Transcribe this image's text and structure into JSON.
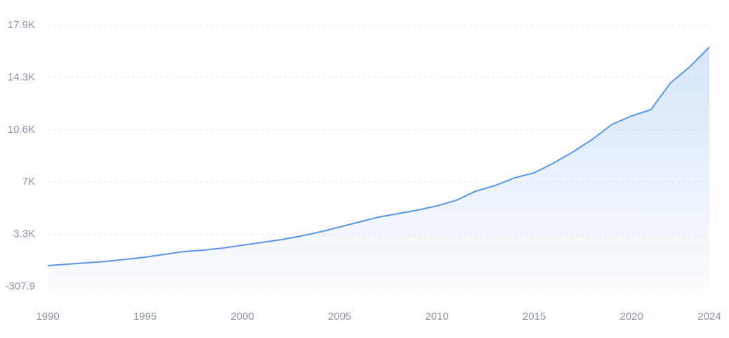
{
  "chart_data": {
    "type": "line",
    "x": [
      1990,
      1991,
      1992,
      1993,
      1994,
      1995,
      1996,
      1997,
      1998,
      1999,
      2000,
      2001,
      2002,
      2003,
      2004,
      2005,
      2006,
      2007,
      2008,
      2009,
      2010,
      2011,
      2012,
      2013,
      2014,
      2015,
      2016,
      2017,
      2018,
      2019,
      2020,
      2021,
      2022,
      2023,
      2024
    ],
    "series": [
      {
        "name": null,
        "color": "#5b97e6",
        "values": [
          1160,
          1258,
          1356,
          1454,
          1601,
          1748,
          1944,
          2140,
          2237,
          2384,
          2580,
          2776,
          2972,
          3216,
          3510,
          3853,
          4195,
          4538,
          4783,
          5028,
          5321,
          5713,
          6349,
          6741,
          7279,
          7622,
          8307,
          9091,
          9972,
          10999,
          11587,
          12028,
          13888,
          15014,
          16385
        ]
      }
    ],
    "xlim": [
      1990,
      2024
    ],
    "xticks": [
      1990,
      1995,
      2000,
      2005,
      2010,
      2015,
      2020,
      2024
    ],
    "ylim": [
      -307.9,
      17900.1
    ],
    "yticks": [
      -307.9,
      {
        "value": 3333.7,
        "label": "3.3K"
      },
      {
        "value": 6975.3,
        "label": "7K"
      },
      {
        "value": 10616.9,
        "label": "10.6K"
      },
      {
        "value": 14258.5,
        "label": "14.3K"
      },
      {
        "value": 17900.1,
        "label": "17.9K"
      }
    ],
    "grid": true
  }
}
